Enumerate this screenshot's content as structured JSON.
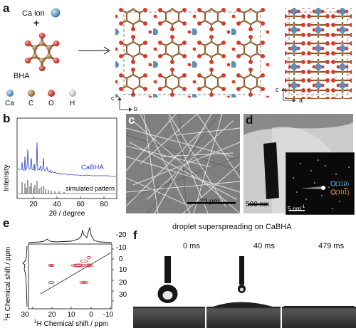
{
  "panels": {
    "a": {
      "label": "a",
      "ca_ion": "Ca ion",
      "plus": "+",
      "bha": "BHA",
      "legend": [
        {
          "label": "Ca",
          "color": "#5a8fc0"
        },
        {
          "label": "C",
          "color": "#b07a4a"
        },
        {
          "label": "O",
          "color": "#d83a2a"
        },
        {
          "label": "H",
          "color": "#d9d9d9"
        }
      ],
      "axis_left": {
        "c": "c",
        "b": "b"
      },
      "axis_right": {
        "c": "c",
        "a": "a"
      }
    },
    "b": {
      "label": "b",
      "ylabel": "Intensity",
      "xlabel": "2θ / degree",
      "series_label_1": "CaBHA",
      "series_label_2": "simulated pattern",
      "ticks": [
        "20",
        "40",
        "60",
        "80"
      ]
    },
    "c": {
      "label": "c",
      "scalebar": "20 µm"
    },
    "d": {
      "label": "d",
      "scalebar": "500 nm",
      "inset_scale": "5 nm",
      "inset_sup": "-1",
      "spot_1": "(110)",
      "spot_2": "(10",
      "spot_2_overline": "1",
      "spot_2_end": ")"
    },
    "e": {
      "label": "e",
      "ylabel": "Chemical shift / ppm",
      "ylabel_sup": "1",
      "ylabel_h": "H",
      "xlabel": "Chemical shift / ppm",
      "xlabel_sup": "1",
      "xlabel_h": "H",
      "xticks": [
        "30",
        "20",
        "10",
        "0",
        "-10"
      ],
      "yticks": [
        "-20",
        "-10",
        "0",
        "10",
        "20",
        "30"
      ]
    },
    "f": {
      "label": "f",
      "title": "droplet superspreading on CaBHA",
      "times": [
        "0 ms",
        "40 ms",
        "479 ms"
      ]
    }
  },
  "colors": {
    "cabha": "#2b3fc0",
    "ca": "#5a8fc0",
    "c": "#b07a4a",
    "o": "#d83a2a",
    "contour": "#c0161c",
    "spot1": "#5ab4e0",
    "spot2": "#f0a030"
  }
}
